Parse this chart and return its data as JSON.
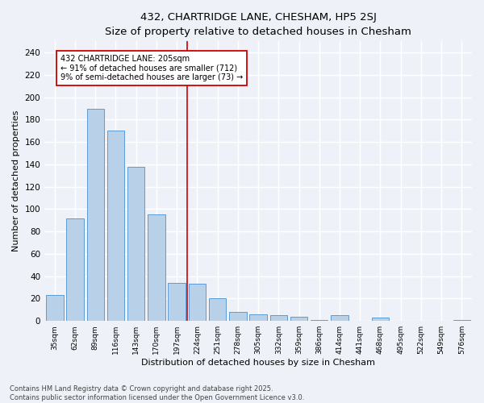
{
  "title": "432, CHARTRIDGE LANE, CHESHAM, HP5 2SJ",
  "subtitle": "Size of property relative to detached houses in Chesham",
  "xlabel": "Distribution of detached houses by size in Chesham",
  "ylabel": "Number of detached properties",
  "categories": [
    "35sqm",
    "62sqm",
    "89sqm",
    "116sqm",
    "143sqm",
    "170sqm",
    "197sqm",
    "224sqm",
    "251sqm",
    "278sqm",
    "305sqm",
    "332sqm",
    "359sqm",
    "386sqm",
    "414sqm",
    "441sqm",
    "468sqm",
    "495sqm",
    "522sqm",
    "549sqm",
    "576sqm"
  ],
  "values": [
    23,
    92,
    190,
    170,
    138,
    95,
    34,
    33,
    20,
    8,
    6,
    5,
    4,
    1,
    5,
    0,
    3,
    0,
    0,
    0,
    1
  ],
  "bar_color": "#b8d0e8",
  "bar_edge_color": "#5b9bd5",
  "vline_x_index": 6.5,
  "vline_color": "#cc0000",
  "annotation_text": "432 CHARTRIDGE LANE: 205sqm\n← 91% of detached houses are smaller (712)\n9% of semi-detached houses are larger (73) →",
  "annotation_box_color": "#ffffff",
  "annotation_box_edge_color": "#cc0000",
  "ylim": [
    0,
    250
  ],
  "yticks": [
    0,
    20,
    40,
    60,
    80,
    100,
    120,
    140,
    160,
    180,
    200,
    220,
    240
  ],
  "background_color": "#eef2f8",
  "grid_color": "#ffffff",
  "footer": "Contains HM Land Registry data © Crown copyright and database right 2025.\nContains public sector information licensed under the Open Government Licence v3.0.",
  "title_fontsize": 9.5,
  "subtitle_fontsize": 8.5,
  "bar_width": 0.85
}
